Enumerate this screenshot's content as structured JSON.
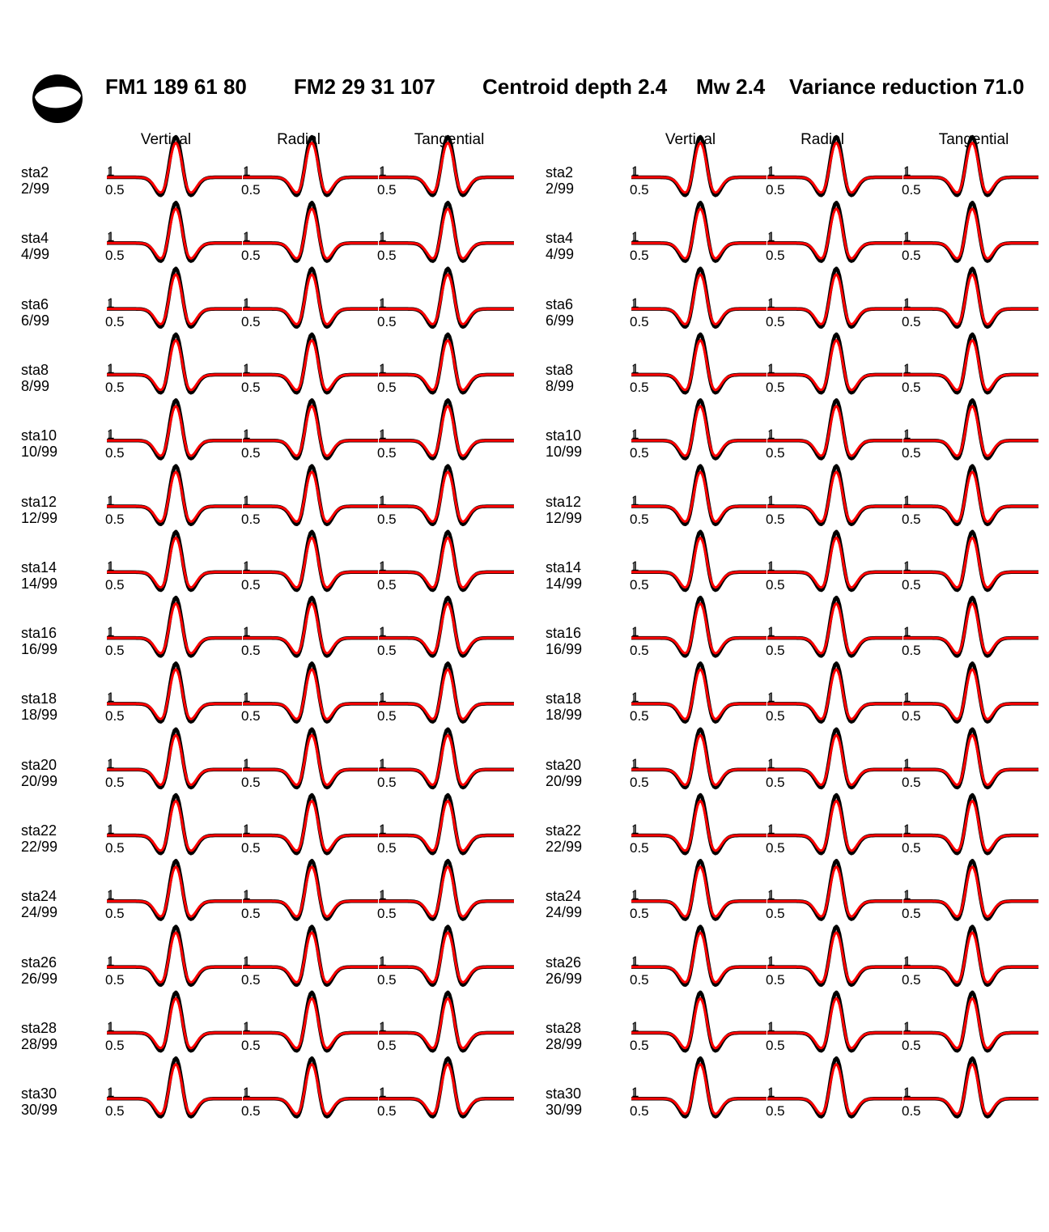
{
  "header": {
    "fm1": "FM1 189 61 80",
    "fm2": "FM2 29 31 107",
    "depth": "Centroid depth 2.4",
    "mw": "Mw 2.4",
    "variance": "Variance reduction 71.0"
  },
  "column_headers": [
    "Vertical",
    "Radial",
    "Tangential"
  ],
  "amplitude_labels": {
    "top": "1",
    "bottom": "0.5"
  },
  "stations": [
    {
      "name": "sta2",
      "fraction": "2/99"
    },
    {
      "name": "sta4",
      "fraction": "4/99"
    },
    {
      "name": "sta6",
      "fraction": "6/99"
    },
    {
      "name": "sta8",
      "fraction": "8/99"
    },
    {
      "name": "sta10",
      "fraction": "10/99"
    },
    {
      "name": "sta12",
      "fraction": "12/99"
    },
    {
      "name": "sta14",
      "fraction": "14/99"
    },
    {
      "name": "sta16",
      "fraction": "16/99"
    },
    {
      "name": "sta18",
      "fraction": "18/99"
    },
    {
      "name": "sta20",
      "fraction": "20/99"
    },
    {
      "name": "sta22",
      "fraction": "22/99"
    },
    {
      "name": "sta24",
      "fraction": "24/99"
    },
    {
      "name": "sta26",
      "fraction": "26/99"
    },
    {
      "name": "sta28",
      "fraction": "28/99"
    },
    {
      "name": "sta30",
      "fraction": "30/99"
    }
  ],
  "colors": {
    "observed": "#000000",
    "synthetic": "#ff0000",
    "beachball_fill": "#000000"
  },
  "chart_data": {
    "type": "line",
    "panels": 2,
    "components": [
      "Vertical",
      "Radial",
      "Tangential"
    ],
    "series": [
      {
        "role": "observed",
        "color": "#000000",
        "peak_amplitude": 1.0
      },
      {
        "role": "synthetic",
        "color": "#ff0000",
        "peak_amplitude": 0.85
      }
    ],
    "y_labels": [
      "1",
      "0.5"
    ]
  }
}
